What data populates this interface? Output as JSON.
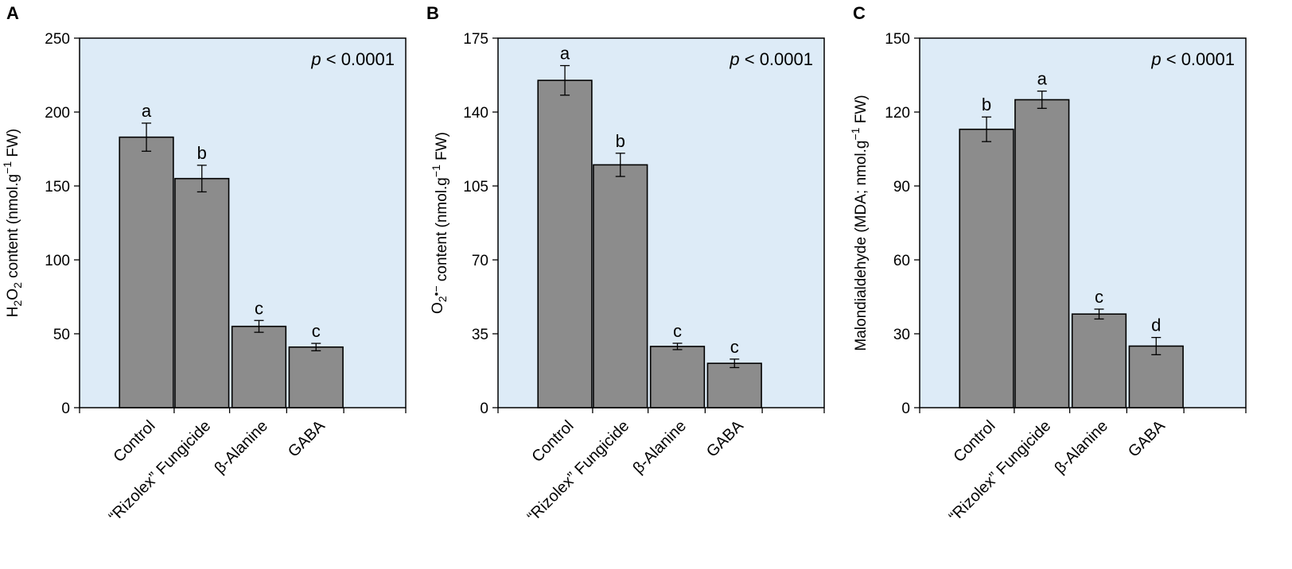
{
  "chart_data": [
    {
      "type": "bar",
      "panel": "A",
      "categories": [
        "Control",
        "“Rizolex” Fungicide",
        "β-Alanine",
        "GABA"
      ],
      "values": [
        183,
        155,
        55,
        41
      ],
      "errors": [
        9.5,
        9,
        4,
        2.5
      ],
      "letters": [
        "a",
        "b",
        "c",
        "c"
      ],
      "ylabel_parts": [
        "H",
        "2",
        "O",
        "2",
        " content (nmol.g",
        "−1",
        " FW)"
      ],
      "ylim": [
        0,
        250
      ],
      "yticks": [
        0,
        50,
        100,
        150,
        200,
        250
      ],
      "annotation_italic": "p",
      "annotation_rest": " < 0.0001"
    },
    {
      "type": "bar",
      "panel": "B",
      "categories": [
        "Control",
        "“Rizolex” Fungicide",
        "β-Alanine",
        "GABA"
      ],
      "values": [
        155,
        115,
        29,
        21
      ],
      "errors": [
        7,
        5.5,
        1.5,
        2
      ],
      "letters": [
        "a",
        "b",
        "c",
        "c"
      ],
      "ylabel_parts": [
        "O",
        "2",
        "•−",
        " content (nmol.g",
        "−1",
        " FW)"
      ],
      "ylim": [
        0,
        175
      ],
      "yticks": [
        0,
        35,
        70,
        105,
        140,
        175
      ],
      "annotation_italic": "p",
      "annotation_rest": " < 0.0001"
    },
    {
      "type": "bar",
      "panel": "C",
      "categories": [
        "Control",
        "“Rizolex” Fungicide",
        "β-Alanine",
        "GABA"
      ],
      "values": [
        113,
        125,
        38,
        25
      ],
      "errors": [
        5,
        3.5,
        2,
        3.5
      ],
      "letters": [
        "b",
        "a",
        "c",
        "d"
      ],
      "ylabel_parts": [
        "Malondialdehyde (MDA; nmol.g",
        "−1",
        " FW)"
      ],
      "ylim": [
        0,
        150
      ],
      "yticks": [
        0,
        30,
        60,
        90,
        120,
        150
      ],
      "annotation_italic": "p",
      "annotation_rest": " < 0.0001"
    }
  ]
}
